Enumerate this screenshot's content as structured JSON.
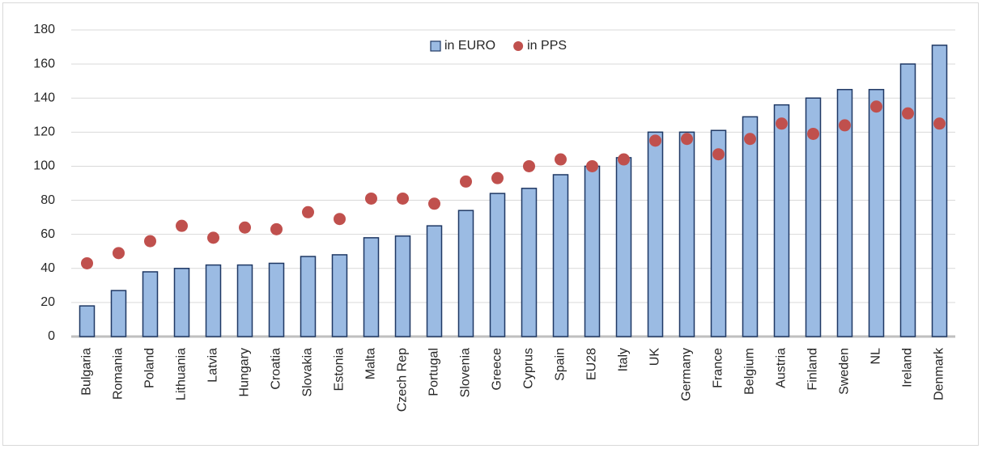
{
  "chart_data": {
    "type": "bar",
    "categories": [
      "Bulgaria",
      "Romania",
      "Poland",
      "Lithuania",
      "Latvia",
      "Hungary",
      "Croatia",
      "Slovakia",
      "Estonia",
      "Malta",
      "Czech Rep",
      "Portugal",
      "Slovenia",
      "Greece",
      "Cyprus",
      "Spain",
      "EU28",
      "Italy",
      "UK",
      "Germany",
      "France",
      "Belgium",
      "Austria",
      "Finland",
      "Sweden",
      "NL",
      "Ireland",
      "Denmark"
    ],
    "series": [
      {
        "name": "in EURO",
        "type": "bar",
        "color": "#9bbbe3",
        "edge_color": "#1f3864",
        "values": [
          18,
          27,
          38,
          40,
          42,
          42,
          43,
          47,
          48,
          58,
          59,
          65,
          74,
          84,
          87,
          95,
          100,
          105,
          120,
          120,
          121,
          129,
          136,
          140,
          145,
          145,
          160,
          171
        ]
      },
      {
        "name": "in PPS",
        "type": "scatter",
        "color": "#c0504d",
        "values": [
          43,
          49,
          56,
          65,
          58,
          64,
          63,
          73,
          69,
          81,
          81,
          78,
          91,
          93,
          100,
          104,
          100,
          104,
          115,
          116,
          107,
          116,
          125,
          119,
          124,
          135,
          131,
          125
        ]
      }
    ],
    "ylim": [
      0,
      180
    ],
    "yticks": [
      0,
      20,
      40,
      60,
      80,
      100,
      120,
      140,
      160,
      180
    ],
    "grid": true,
    "legend": "top"
  }
}
